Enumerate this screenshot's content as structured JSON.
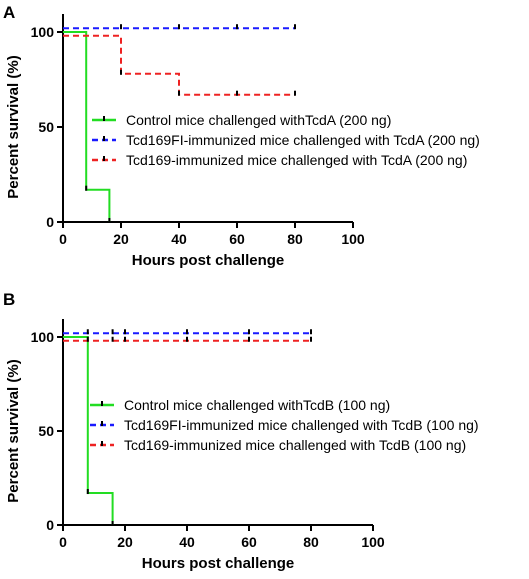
{
  "chart_data": [
    {
      "panel": "A",
      "type": "line",
      "xlabel": "Hours post challenge",
      "ylabel": "Percent survival (%)",
      "xlim": [
        0,
        100
      ],
      "ylim": [
        0,
        100
      ],
      "xticks": [
        0,
        20,
        40,
        60,
        80,
        100
      ],
      "yticks": [
        0,
        50,
        100
      ],
      "legend_position": "center-right",
      "series": [
        {
          "name": "Control mice challenged withTcdA (200 ng)",
          "color": "#22dd22",
          "dash": "solid",
          "x": [
            0,
            8,
            8,
            16,
            16
          ],
          "y": [
            100,
            100,
            17,
            17,
            0
          ],
          "censor_x": [
            8,
            16
          ]
        },
        {
          "name": "Tcd169FI-immunized mice challenged with TcdA (200 ng)",
          "color": "#1a1aff",
          "dash": "dashed",
          "x": [
            0,
            80
          ],
          "y": [
            102,
            102
          ],
          "censor_x": [
            20,
            40,
            60,
            80
          ]
        },
        {
          "name": "Tcd169-immunized mice challenged with TcdA (200 ng)",
          "color": "#ee2222",
          "dash": "dashed",
          "x": [
            0,
            20,
            20,
            40,
            40,
            80
          ],
          "y": [
            98,
            98,
            78,
            78,
            67,
            67
          ],
          "censor_x": [
            20,
            40,
            60,
            80
          ]
        }
      ]
    },
    {
      "panel": "B",
      "type": "line",
      "xlabel": "Hours post challenge",
      "ylabel": "Percent survival (%)",
      "xlim": [
        0,
        100
      ],
      "ylim": [
        0,
        100
      ],
      "xticks": [
        0,
        20,
        40,
        60,
        80,
        100
      ],
      "yticks": [
        0,
        50,
        100
      ],
      "legend_position": "center-right",
      "series": [
        {
          "name": "Control mice challenged withTcdB (100 ng)",
          "color": "#22dd22",
          "dash": "solid",
          "x": [
            0,
            8,
            8,
            16,
            16
          ],
          "y": [
            100,
            100,
            17,
            17,
            0
          ],
          "censor_x": [
            8,
            16
          ]
        },
        {
          "name": "Tcd169FI-immunized mice challenged with TcdB  (100 ng)",
          "color": "#1a1aff",
          "dash": "dashed",
          "x": [
            0,
            80
          ],
          "y": [
            102,
            102
          ],
          "censor_x": [
            8,
            16,
            20,
            40,
            60,
            80
          ]
        },
        {
          "name": "Tcd169-immunized mice challenged with TcdB  (100 ng)",
          "color": "#ee2222",
          "dash": "dashed",
          "x": [
            0,
            80
          ],
          "y": [
            98,
            98
          ],
          "censor_x": [
            8,
            16,
            20,
            40,
            60,
            80
          ]
        }
      ]
    }
  ]
}
